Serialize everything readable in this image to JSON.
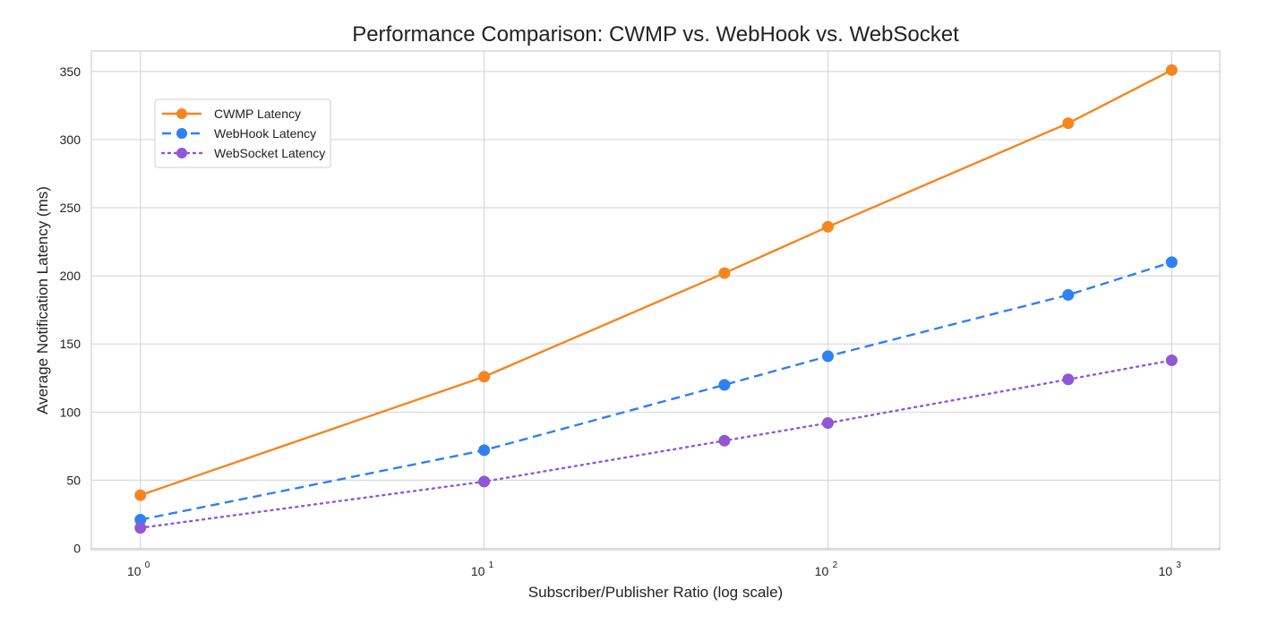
{
  "chart_data": {
    "type": "line",
    "title": "Performance Comparison: CWMP vs. WebHook vs. WebSocket",
    "xlabel": "Subscriber/Publisher Ratio (log scale)",
    "ylabel": "Average Notification Latency (ms)",
    "xscale": "log",
    "xlim": [
      0.72,
      1380
    ],
    "ylim": [
      -1,
      365
    ],
    "x_ticks": [
      {
        "base": "10",
        "exp": "0",
        "value": 1
      },
      {
        "base": "10",
        "exp": "1",
        "value": 10
      },
      {
        "base": "10",
        "exp": "2",
        "value": 100
      },
      {
        "base": "10",
        "exp": "3",
        "value": 1000
      }
    ],
    "y_ticks": [
      {
        "label": "0",
        "value": 0
      },
      {
        "label": "50",
        "value": 50
      },
      {
        "label": "100",
        "value": 100
      },
      {
        "label": "150",
        "value": 150
      },
      {
        "label": "200",
        "value": 200
      },
      {
        "label": "250",
        "value": 250
      },
      {
        "label": "300",
        "value": 300
      },
      {
        "label": "350",
        "value": 350
      }
    ],
    "x": [
      1,
      10,
      50,
      100,
      500,
      1000
    ],
    "series": [
      {
        "name": "CWMP Latency",
        "color": "#f5861f",
        "line_style": "solid",
        "values": [
          39,
          126,
          202,
          236,
          312,
          351
        ]
      },
      {
        "name": "WebHook Latency",
        "color": "#2f80f5",
        "line_style": "dashed",
        "values": [
          21,
          72,
          120,
          141,
          186,
          210
        ]
      },
      {
        "name": "WebSocket Latency",
        "color": "#9058d4",
        "line_style": "dotted",
        "values": [
          15,
          49,
          79,
          92,
          124,
          138
        ]
      }
    ],
    "grid": true,
    "legend_position": "upper-left"
  }
}
